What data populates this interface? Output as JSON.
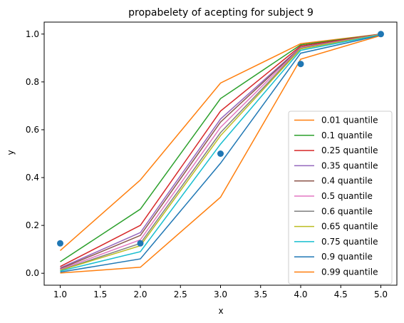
{
  "chart_data": {
    "type": "line",
    "title": "propabelety of acepting for subject 9",
    "xlabel": "x",
    "ylabel": "y",
    "xlim": [
      0.8,
      5.2
    ],
    "ylim": [
      -0.05,
      1.05
    ],
    "xticks": [
      1.0,
      1.5,
      2.0,
      2.5,
      3.0,
      3.5,
      4.0,
      4.5,
      5.0
    ],
    "yticks": [
      0.0,
      0.2,
      0.4,
      0.6,
      0.8,
      1.0
    ],
    "xtick_labels": [
      "1.0",
      "1.5",
      "2.0",
      "2.5",
      "3.0",
      "3.5",
      "4.0",
      "4.5",
      "5.0"
    ],
    "ytick_labels": [
      "0.0",
      "0.2",
      "0.4",
      "0.6",
      "0.8",
      "1.0"
    ],
    "grid": false,
    "legend_position": "lower right",
    "x": [
      1,
      2,
      3,
      4,
      5
    ],
    "series": [
      {
        "name": "0.01 quantile",
        "color": "#ff7f0e",
        "values": [
          0.095,
          0.39,
          0.795,
          0.96,
          1.0
        ]
      },
      {
        "name": "0.1 quantile",
        "color": "#2ca02c",
        "values": [
          0.048,
          0.268,
          0.73,
          0.955,
          1.0
        ]
      },
      {
        "name": "0.25 quantile",
        "color": "#d62728",
        "values": [
          0.028,
          0.2,
          0.678,
          0.95,
          1.0
        ]
      },
      {
        "name": "0.35 quantile",
        "color": "#9467bd",
        "values": [
          0.022,
          0.17,
          0.645,
          0.945,
          0.999
        ]
      },
      {
        "name": "0.4 quantile",
        "color": "#8c564b",
        "values": [
          0.019,
          0.158,
          0.632,
          0.944,
          0.999
        ]
      },
      {
        "name": "0.5 quantile",
        "color": "#e377c2",
        "values": [
          0.016,
          0.14,
          0.61,
          0.942,
          0.999
        ]
      },
      {
        "name": "0.6 quantile",
        "color": "#7f7f7f",
        "values": [
          0.013,
          0.125,
          0.588,
          0.94,
          0.998
        ]
      },
      {
        "name": "0.65 quantile",
        "color": "#bcbd22",
        "values": [
          0.012,
          0.115,
          0.575,
          0.938,
          0.998
        ]
      },
      {
        "name": "0.75 quantile",
        "color": "#17becf",
        "values": [
          0.009,
          0.09,
          0.54,
          0.932,
          0.997
        ]
      },
      {
        "name": "0.9 quantile",
        "color": "#1f77b4",
        "values": [
          0.005,
          0.06,
          0.46,
          0.92,
          0.995
        ]
      },
      {
        "name": "0.99 quantile",
        "color": "#ff7f0e",
        "values": [
          0.001,
          0.025,
          0.318,
          0.895,
          0.994
        ]
      }
    ],
    "scatter": {
      "color": "#1f77b4",
      "x": [
        1,
        2,
        3,
        4,
        5
      ],
      "y": [
        0.125,
        0.125,
        0.5,
        0.875,
        1.0
      ]
    }
  }
}
